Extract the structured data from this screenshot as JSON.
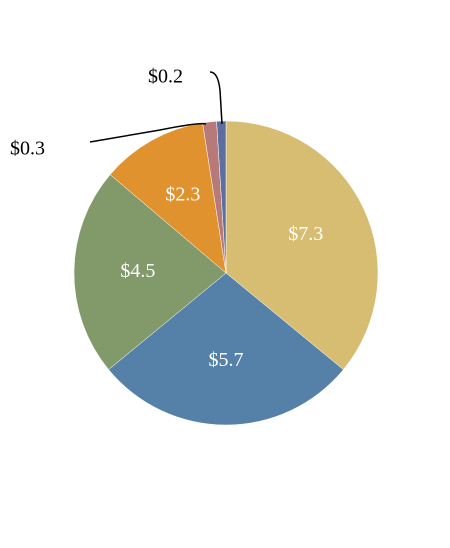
{
  "chart_data": {
    "type": "pie",
    "values": [
      7.3,
      5.7,
      4.5,
      2.3,
      0.3,
      0.2
    ],
    "value_labels": [
      "$7.3",
      "$5.7",
      "$4.5",
      "$2.3",
      "$0.3",
      "$0.2"
    ],
    "colors": [
      "#d6bd72",
      "#5580a8",
      "#82996a",
      "#e0922e",
      "#b87a78",
      "#5d6fa0"
    ]
  }
}
